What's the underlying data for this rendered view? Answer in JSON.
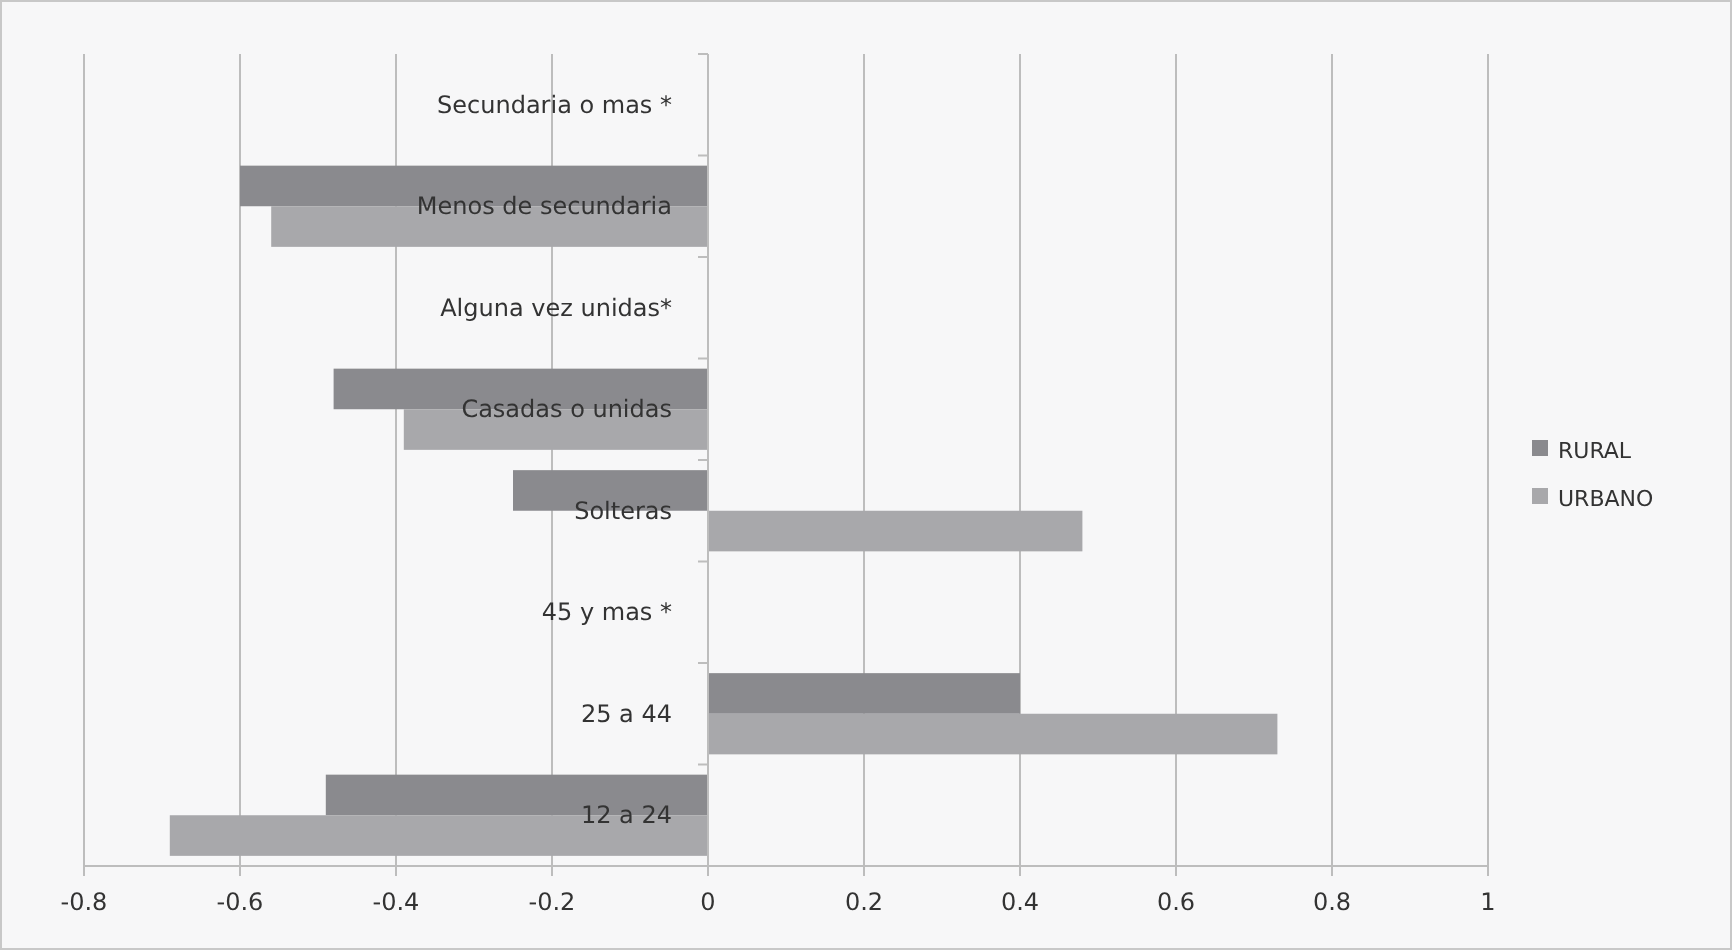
{
  "chart_data": {
    "type": "bar",
    "orientation": "horizontal",
    "categories": [
      "Secundaria o mas *",
      "Menos de secundaria",
      "Alguna vez unidas*",
      "Casadas  o unidas",
      "Solteras",
      "45 y mas *",
      "25 a 44",
      "12 a 24"
    ],
    "series": [
      {
        "name": "RURAL",
        "color": "#8a8a8e",
        "values": [
          null,
          -0.6,
          null,
          -0.48,
          -0.25,
          null,
          0.4,
          -0.49
        ]
      },
      {
        "name": "URBANO",
        "color": "#a8a8ab",
        "values": [
          null,
          -0.56,
          null,
          -0.39,
          0.48,
          null,
          0.73,
          -0.69
        ]
      }
    ],
    "xlim": [
      -0.8,
      1
    ],
    "xticks": [
      -0.8,
      -0.6,
      -0.4,
      -0.2,
      0,
      0.2,
      0.4,
      0.6,
      0.8,
      1
    ],
    "grid": "x",
    "legend": "right"
  }
}
